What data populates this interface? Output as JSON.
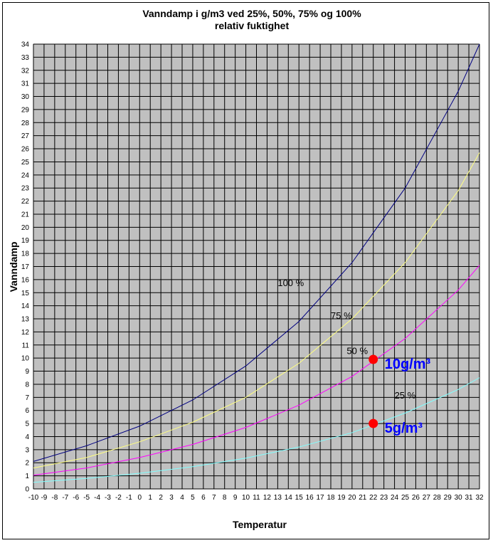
{
  "chart_data": {
    "type": "line",
    "title_line1": "Vanndamp i g/m3 ved 25%, 50%, 75% og 100%",
    "title_line2": "relativ fuktighet",
    "xlabel": "Temperatur",
    "ylabel": "Vanndamp",
    "xlim": [
      -10,
      32
    ],
    "ylim": [
      0,
      34
    ],
    "grid": true,
    "plot_background": "#c0c0c0",
    "x": [
      -10,
      -5,
      0,
      5,
      10,
      15,
      20,
      25,
      30,
      32
    ],
    "x_ticks": [
      "-10",
      "-9",
      "-8",
      "-7",
      "-6",
      "-5",
      "-4",
      "-3",
      "-2",
      "-1",
      "0",
      "1",
      "2",
      "3",
      "4",
      "5",
      "6",
      "7",
      "8",
      "9",
      "10",
      "11",
      "12",
      "13",
      "14",
      "15",
      "16",
      "17",
      "18",
      "19",
      "20",
      "21",
      "22",
      "23",
      "24",
      "25",
      "26",
      "27",
      "28",
      "29",
      "30",
      "31",
      "32"
    ],
    "y_ticks": [
      "0",
      "1",
      "2",
      "3",
      "4",
      "5",
      "6",
      "7",
      "8",
      "9",
      "10",
      "11",
      "12",
      "13",
      "14",
      "15",
      "16",
      "17",
      "18",
      "19",
      "20",
      "21",
      "22",
      "23",
      "24",
      "25",
      "26",
      "27",
      "28",
      "29",
      "30",
      "31",
      "32",
      "33",
      "34"
    ],
    "series": [
      {
        "label": "100 %",
        "color": "#000080",
        "values": [
          2.1,
          3.3,
          4.8,
          6.8,
          9.4,
          12.8,
          17.3,
          23.0,
          30.4,
          34.0
        ],
        "label_x": 13.0,
        "label_y": 15.5
      },
      {
        "label": "75 %",
        "color": "#ffff80",
        "values": [
          1.6,
          2.4,
          3.6,
          5.1,
          7.0,
          9.6,
          13.0,
          17.3,
          22.8,
          25.7
        ],
        "label_x": 18.0,
        "label_y": 13.0
      },
      {
        "label": "50 %",
        "color": "#ff00ff",
        "values": [
          1.05,
          1.6,
          2.4,
          3.4,
          4.7,
          6.4,
          8.6,
          11.5,
          15.2,
          17.1
        ],
        "label_x": 19.5,
        "label_y": 10.3
      },
      {
        "label": "25 %",
        "color": "#80ffff",
        "values": [
          0.5,
          0.8,
          1.2,
          1.7,
          2.35,
          3.2,
          4.3,
          5.8,
          7.6,
          8.5
        ],
        "label_x": 24.0,
        "label_y": 6.9
      }
    ],
    "markers": [
      {
        "x": 22,
        "y": 9.9,
        "label": "10g/m³",
        "color": "#ff0000",
        "label_color": "#0000ff"
      },
      {
        "x": 22,
        "y": 5.0,
        "label": "5g/m³",
        "color": "#ff0000",
        "label_color": "#0000ff"
      }
    ]
  }
}
